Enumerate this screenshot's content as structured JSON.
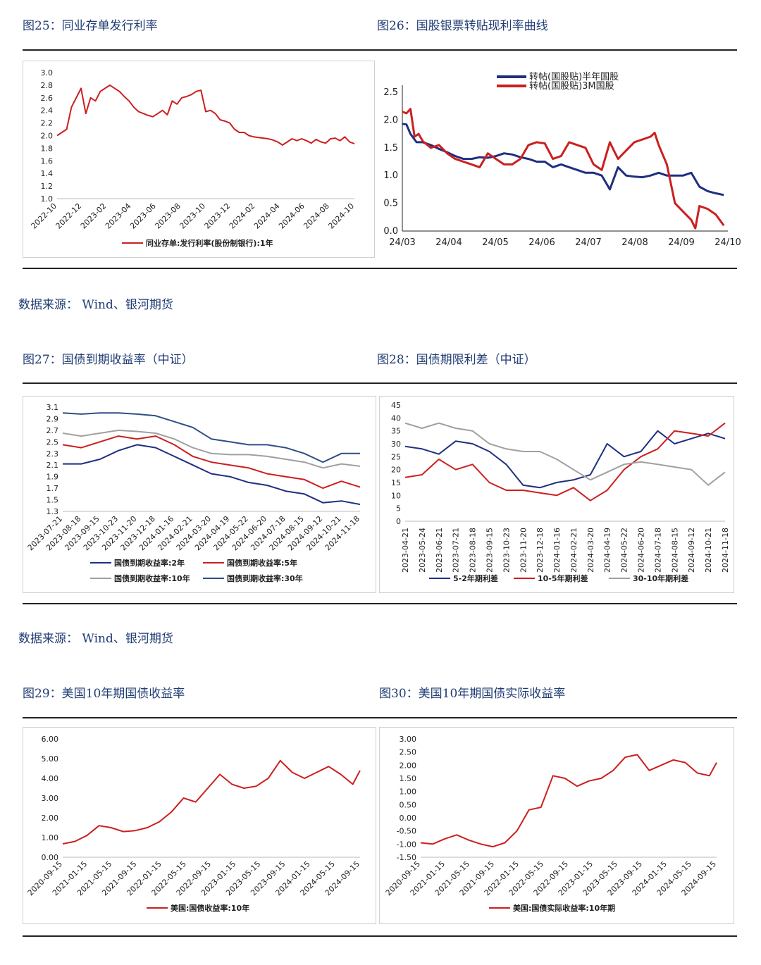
{
  "colors": {
    "red": "#cc1f1f",
    "navy": "#1f2f80",
    "gray": "#a0a0a0",
    "blue": "#2c4f86",
    "text": "#1f3b73"
  },
  "sources": {
    "row1": "数据来源：  Wind、银河期货",
    "row2": "数据来源：  Wind、银河期货"
  },
  "fig25": {
    "title": "图25：同业存单发行利率",
    "chart_data": {
      "type": "line",
      "x_ticks": [
        "2022-10",
        "2022-12",
        "2023-02",
        "2023-04",
        "2023-06",
        "2023-08",
        "2023-10",
        "2023-12",
        "2024-02",
        "2024-04",
        "2024-06",
        "2024-08",
        "2024-10"
      ],
      "y_ticks": [
        "3.0",
        "2.8",
        "2.6",
        "2.4",
        "2.2",
        "2.0",
        "1.8",
        "1.6",
        "1.4",
        "1.2",
        "1.0"
      ],
      "ylim": [
        1.0,
        3.0
      ],
      "series": [
        {
          "name": "同业存单:发行利率(股份制银行):1年",
          "color": "#cc1f1f",
          "x": [
            0,
            0.2,
            0.4,
            0.6,
            0.8,
            1.0,
            1.2,
            1.4,
            1.6,
            1.8,
            2.0,
            2.2,
            2.4,
            2.6,
            2.8,
            3.0,
            3.2,
            3.4,
            3.6,
            3.8,
            4.0,
            4.2,
            4.4,
            4.6,
            4.8,
            5.0,
            5.2,
            5.4,
            5.6,
            5.8,
            6.0,
            6.2,
            6.4,
            6.6,
            6.8,
            7.0,
            7.2,
            7.4,
            7.6,
            7.8,
            8.0,
            8.2,
            8.4,
            8.6,
            8.8,
            9.0,
            9.2,
            9.4,
            9.6,
            9.8,
            10.0,
            10.2,
            10.4,
            10.6,
            10.8,
            11.0,
            11.2,
            11.4,
            11.6,
            11.8,
            12.0,
            12.2,
            12.4
          ],
          "y": [
            2.0,
            2.05,
            2.1,
            2.45,
            2.6,
            2.75,
            2.35,
            2.6,
            2.55,
            2.7,
            2.75,
            2.8,
            2.75,
            2.7,
            2.62,
            2.55,
            2.45,
            2.38,
            2.35,
            2.32,
            2.3,
            2.35,
            2.4,
            2.33,
            2.55,
            2.5,
            2.6,
            2.62,
            2.65,
            2.7,
            2.72,
            2.38,
            2.4,
            2.35,
            2.25,
            2.23,
            2.2,
            2.1,
            2.05,
            2.05,
            2.0,
            1.98,
            1.97,
            1.96,
            1.95,
            1.93,
            1.9,
            1.85,
            1.9,
            1.95,
            1.92,
            1.95,
            1.92,
            1.88,
            1.94,
            1.9,
            1.88,
            1.95,
            1.96,
            1.92,
            1.98,
            1.9,
            1.87
          ]
        }
      ]
    }
  },
  "fig26": {
    "title": "图26：国股银票转贴现利率曲线",
    "chart_data": {
      "type": "line",
      "x_ticks": [
        "24/03",
        "24/04",
        "24/05",
        "24/06",
        "24/07",
        "24/08",
        "24/09",
        "24/10"
      ],
      "y_ticks": [
        "2.5",
        "2.0",
        "1.5",
        "1.0",
        "0.5",
        "0.0"
      ],
      "ylim": [
        0,
        2.5
      ],
      "series": [
        {
          "name": "转帖(国股贴)半年国股",
          "color": "#1f2f80",
          "x": [
            0,
            0.1,
            0.2,
            0.35,
            0.5,
            0.7,
            0.9,
            1.1,
            1.3,
            1.5,
            1.7,
            1.9,
            2.1,
            2.3,
            2.5,
            2.7,
            2.9,
            3.1,
            3.3,
            3.5,
            3.7,
            3.9,
            4.1,
            4.3,
            4.5,
            4.7,
            4.9,
            5.1,
            5.2,
            5.3,
            5.5,
            5.7,
            5.9,
            6.1,
            6.3,
            6.5,
            6.7,
            6.9,
            7.1,
            7.3,
            7.5,
            7.7,
            7.9
          ],
          "y": [
            1.93,
            1.92,
            1.75,
            1.6,
            1.6,
            1.55,
            1.48,
            1.42,
            1.35,
            1.3,
            1.3,
            1.33,
            1.32,
            1.35,
            1.4,
            1.38,
            1.33,
            1.3,
            1.25,
            1.25,
            1.15,
            1.2,
            1.15,
            1.1,
            1.05,
            1.05,
            1.0,
            0.75,
            0.95,
            1.15,
            1.0,
            0.98,
            0.97,
            1.0,
            1.05,
            1.0,
            1.0,
            1.0,
            1.05,
            0.8,
            0.72,
            0.68,
            0.65
          ]
        },
        {
          "name": "转帖(国股贴)3M国股",
          "color": "#cc1f1f",
          "x": [
            0,
            0.1,
            0.2,
            0.3,
            0.4,
            0.5,
            0.7,
            0.9,
            1.1,
            1.3,
            1.5,
            1.7,
            1.9,
            2.1,
            2.3,
            2.5,
            2.7,
            2.9,
            3.1,
            3.3,
            3.5,
            3.7,
            3.9,
            4.1,
            4.3,
            4.5,
            4.7,
            4.9,
            5.1,
            5.3,
            5.5,
            5.7,
            5.9,
            6.1,
            6.2,
            6.3,
            6.5,
            6.7,
            6.9,
            7.1,
            7.2,
            7.3,
            7.5,
            7.7,
            7.9
          ],
          "y": [
            2.15,
            2.12,
            2.2,
            1.7,
            1.75,
            1.62,
            1.5,
            1.55,
            1.4,
            1.3,
            1.25,
            1.2,
            1.15,
            1.4,
            1.3,
            1.2,
            1.2,
            1.3,
            1.55,
            1.6,
            1.58,
            1.3,
            1.35,
            1.6,
            1.55,
            1.5,
            1.2,
            1.1,
            1.6,
            1.3,
            1.45,
            1.6,
            1.65,
            1.7,
            1.77,
            1.55,
            1.2,
            0.5,
            0.35,
            0.2,
            0.05,
            0.45,
            0.4,
            0.3,
            0.1
          ]
        }
      ]
    }
  },
  "fig27": {
    "title": "图27：国债到期收益率（中证）",
    "chart_data": {
      "type": "line",
      "x_ticks": [
        "2023-07-21",
        "2023-08-18",
        "2023-09-15",
        "2023-10-23",
        "2023-11-20",
        "2023-12-18",
        "2024-01-16",
        "2024-02-21",
        "2024-03-20",
        "2024-04-19",
        "2024-05-22",
        "2024-06-20",
        "2024-07-18",
        "2024-08-15",
        "2024-09-12",
        "2024-10-21",
        "2024-11-18"
      ],
      "y_ticks": [
        "3.1",
        "2.9",
        "2.7",
        "2.5",
        "2.3",
        "2.1",
        "1.9",
        "1.7",
        "1.5",
        "1.3"
      ],
      "ylim": [
        1.3,
        3.1
      ],
      "series": [
        {
          "name": "国债到期收益率:2年",
          "color": "#1f2f80",
          "x": [
            0,
            1,
            2,
            3,
            4,
            5,
            6,
            7,
            8,
            9,
            10,
            11,
            12,
            13,
            14,
            15,
            16
          ],
          "y": [
            2.12,
            2.12,
            2.2,
            2.35,
            2.45,
            2.4,
            2.25,
            2.1,
            1.95,
            1.9,
            1.8,
            1.75,
            1.65,
            1.6,
            1.45,
            1.48,
            1.42
          ]
        },
        {
          "name": "国债到期收益率:5年",
          "color": "#cc1f1f",
          "x": [
            0,
            1,
            2,
            3,
            4,
            5,
            6,
            7,
            8,
            9,
            10,
            11,
            12,
            13,
            14,
            15,
            16
          ],
          "y": [
            2.45,
            2.4,
            2.5,
            2.6,
            2.55,
            2.6,
            2.45,
            2.25,
            2.15,
            2.1,
            2.05,
            1.95,
            1.9,
            1.85,
            1.7,
            1.82,
            1.72
          ]
        },
        {
          "name": "国债到期收益率:10年",
          "color": "#a0a0a0",
          "x": [
            0,
            1,
            2,
            3,
            4,
            5,
            6,
            7,
            8,
            9,
            10,
            11,
            12,
            13,
            14,
            15,
            16
          ],
          "y": [
            2.65,
            2.6,
            2.65,
            2.7,
            2.68,
            2.65,
            2.55,
            2.4,
            2.3,
            2.28,
            2.28,
            2.25,
            2.2,
            2.15,
            2.05,
            2.12,
            2.08
          ]
        },
        {
          "name": "国债到期收益率:30年",
          "color": "#2c4f86",
          "x": [
            0,
            1,
            2,
            3,
            4,
            5,
            6,
            7,
            8,
            9,
            10,
            11,
            12,
            13,
            14,
            15,
            16
          ],
          "y": [
            3.0,
            2.98,
            3.0,
            3.0,
            2.98,
            2.95,
            2.85,
            2.75,
            2.55,
            2.5,
            2.45,
            2.45,
            2.4,
            2.3,
            2.15,
            2.3,
            2.3
          ]
        }
      ]
    }
  },
  "fig28": {
    "title": "图28：国债期限利差（中证）",
    "chart_data": {
      "type": "line",
      "x_ticks": [
        "2023-04-21",
        "2023-05-24",
        "2023-06-21",
        "2023-07-21",
        "2023-08-18",
        "2023-09-15",
        "2023-10-23",
        "2023-11-20",
        "2023-12-18",
        "2024-01-16",
        "2024-02-21",
        "2024-03-20",
        "2024-04-19",
        "2024-05-22",
        "2024-06-20",
        "2024-07-18",
        "2024-08-15",
        "2024-09-12",
        "2024-10-21",
        "2024-11-18"
      ],
      "y_ticks": [
        "45",
        "40",
        "35",
        "30",
        "25",
        "20",
        "15",
        "10",
        "5",
        "0"
      ],
      "ylim": [
        0,
        45
      ],
      "series": [
        {
          "name": "5-2年期利差",
          "color": "#1f2f80",
          "x": [
            0,
            1,
            2,
            3,
            4,
            5,
            6,
            7,
            8,
            9,
            10,
            11,
            12,
            13,
            14,
            15,
            16,
            17,
            18,
            19
          ],
          "y": [
            29,
            28,
            26,
            31,
            30,
            27,
            22,
            14,
            13,
            15,
            16,
            18,
            30,
            25,
            27,
            35,
            30,
            32,
            34,
            32
          ]
        },
        {
          "name": "10-5年期利差",
          "color": "#cc1f1f",
          "x": [
            0,
            1,
            2,
            3,
            4,
            5,
            6,
            7,
            8,
            9,
            10,
            11,
            12,
            13,
            14,
            15,
            16,
            17,
            18,
            19
          ],
          "y": [
            17,
            18,
            24,
            20,
            22,
            15,
            12,
            12,
            11,
            10,
            13,
            8,
            12,
            20,
            25,
            28,
            35,
            34,
            33,
            38
          ]
        },
        {
          "name": "30-10年期利差",
          "color": "#a0a0a0",
          "x": [
            0,
            1,
            2,
            3,
            4,
            5,
            6,
            7,
            8,
            9,
            10,
            11,
            12,
            13,
            14,
            15,
            16,
            17,
            18,
            19
          ],
          "y": [
            38,
            36,
            38,
            36,
            35,
            30,
            28,
            27,
            27,
            24,
            20,
            16,
            19,
            22,
            23,
            22,
            21,
            20,
            14,
            19
          ]
        }
      ]
    }
  },
  "fig29": {
    "title": "图29：美国10年期国债收益率",
    "chart_data": {
      "type": "line",
      "x_ticks": [
        "2020-09-15",
        "2021-01-15",
        "2021-05-15",
        "2021-09-15",
        "2022-01-15",
        "2022-05-15",
        "2022-09-15",
        "2023-01-15",
        "2023-05-15",
        "2023-09-15",
        "2024-01-15",
        "2024-05-15",
        "2024-09-15"
      ],
      "y_ticks": [
        "6.00",
        "5.00",
        "4.00",
        "3.00",
        "2.00",
        "1.00",
        "0.00"
      ],
      "ylim": [
        0,
        6
      ],
      "series": [
        {
          "name": "美国:国债收益率:10年",
          "color": "#cc1f1f",
          "x": [
            0,
            0.5,
            1,
            1.5,
            2,
            2.5,
            3,
            3.5,
            4,
            4.5,
            5,
            5.5,
            6,
            6.5,
            7,
            7.5,
            8,
            8.5,
            9,
            9.5,
            10,
            10.5,
            11,
            11.5,
            12,
            12.3
          ],
          "y": [
            0.68,
            0.8,
            1.1,
            1.6,
            1.5,
            1.3,
            1.35,
            1.5,
            1.8,
            2.3,
            3.0,
            2.8,
            3.5,
            4.2,
            3.7,
            3.5,
            3.6,
            4.0,
            4.9,
            4.3,
            4.0,
            4.3,
            4.6,
            4.2,
            3.7,
            4.4
          ]
        }
      ]
    }
  },
  "fig30": {
    "title": "图30：美国10年期国债实际收益率",
    "chart_data": {
      "type": "line",
      "x_ticks": [
        "2020-09-15",
        "2021-01-15",
        "2021-05-15",
        "2021-09-15",
        "2022-01-15",
        "2022-05-15",
        "2022-09-15",
        "2023-01-15",
        "2023-05-15",
        "2023-09-15",
        "2024-01-15",
        "2024-05-15",
        "2024-09-15"
      ],
      "y_ticks": [
        "3.00",
        "2.50",
        "2.00",
        "1.50",
        "1.00",
        "0.50",
        "0.00",
        "-0.50",
        "-1.00",
        "-1.50"
      ],
      "ylim": [
        -1.5,
        3
      ],
      "series": [
        {
          "name": "美国:国债实际收益率:10年期",
          "color": "#cc1f1f",
          "x": [
            0,
            0.5,
            1,
            1.5,
            2,
            2.5,
            3,
            3.5,
            4,
            4.5,
            5,
            5.5,
            6,
            6.5,
            7,
            7.5,
            8,
            8.5,
            9,
            9.5,
            10,
            10.5,
            11,
            11.5,
            12,
            12.3
          ],
          "y": [
            -0.95,
            -1.0,
            -0.8,
            -0.65,
            -0.85,
            -1.0,
            -1.1,
            -0.95,
            -0.5,
            0.3,
            0.4,
            1.6,
            1.5,
            1.2,
            1.4,
            1.5,
            1.8,
            2.3,
            2.4,
            1.8,
            2.0,
            2.2,
            2.1,
            1.7,
            1.6,
            2.1
          ]
        }
      ]
    }
  }
}
